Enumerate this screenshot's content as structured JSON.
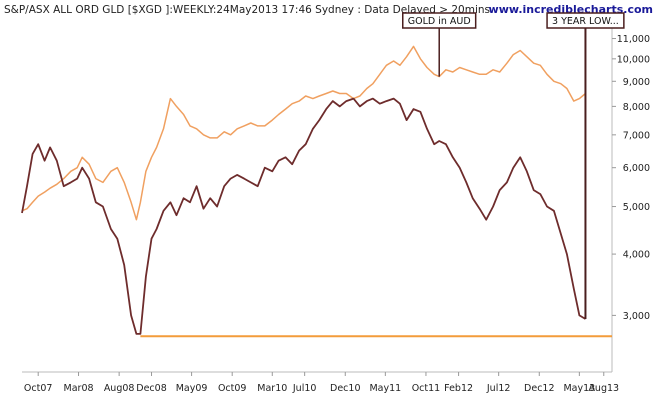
{
  "header": {
    "left_text": "S&P/ASX ALL ORD GLD [$XGD ]:WEEKLY:24May2013 17:46 Sydney : Data Delayed > 20mins",
    "brand": "www.incrediblecharts.com"
  },
  "colors": {
    "xgd_line": "#6e2c2c",
    "gold_aud_line": "#f0a060",
    "support_line": "#f39c3a",
    "annotation": "#4a1e1e"
  },
  "annotations": [
    {
      "label": "GOLD in AUD",
      "points_to_x": "2011-11-20"
    },
    {
      "label": "3 YEAR LOW...",
      "points_to_x": "2013-05-24"
    }
  ],
  "chart_data": {
    "type": "line",
    "title": "S&P/ASX ALL ORD GLD [$XGD ]:WEEKLY:24May2013 17:46 Sydney : Data Delayed > 20mins",
    "x_ticks": [
      "Oct07",
      "Mar08",
      "Aug08",
      "Dec08",
      "May09",
      "Oct09",
      "Mar10",
      "Jul10",
      "Dec10",
      "May11",
      "Oct11",
      "Feb12",
      "Jul12",
      "Dec12",
      "May13",
      "Aug13"
    ],
    "x_tick_dates": [
      "2007-10-01",
      "2008-03-01",
      "2008-08-01",
      "2008-12-01",
      "2009-05-01",
      "2009-10-01",
      "2010-03-01",
      "2010-07-01",
      "2010-12-01",
      "2011-05-01",
      "2011-10-01",
      "2012-02-01",
      "2012-07-01",
      "2012-12-01",
      "2013-05-01",
      "2013-08-01"
    ],
    "x_range": [
      "2007-08-01",
      "2013-09-01"
    ],
    "y_scale": "log",
    "y_ticks": [
      3000,
      4000,
      5000,
      6000,
      7000,
      8000,
      9000,
      10000,
      11000
    ],
    "y_tick_labels": [
      "3,000",
      "4,000",
      "5,000",
      "6,000",
      "7,000",
      "8,000",
      "9,000",
      "10,000",
      "11,000"
    ],
    "ylim": [
      2300,
      12000
    ],
    "grid": false,
    "legend": "none",
    "horizontal_line": {
      "y": 2720,
      "from": "2008-10-20",
      "to": "2013-09-01"
    },
    "series": [
      {
        "x": [
          "2007-08-01",
          "2007-08-20",
          "2007-09-10",
          "2007-10-01",
          "2007-10-25",
          "2007-11-15",
          "2007-12-10",
          "2008-01-05",
          "2008-02-01",
          "2008-02-25",
          "2008-03-15",
          "2008-04-10",
          "2008-05-05",
          "2008-06-01",
          "2008-07-01",
          "2008-07-25",
          "2008-08-20",
          "2008-09-15",
          "2008-10-05",
          "2008-10-20",
          "2008-11-10",
          "2008-12-01",
          "2008-12-20",
          "2009-01-15",
          "2009-02-10",
          "2009-03-05",
          "2009-04-01",
          "2009-04-25",
          "2009-05-20",
          "2009-06-15",
          "2009-07-10",
          "2009-08-05",
          "2009-09-01",
          "2009-09-25",
          "2009-10-20",
          "2009-11-15",
          "2009-12-10",
          "2010-01-05",
          "2010-02-01",
          "2010-03-01",
          "2010-03-25",
          "2010-04-20",
          "2010-05-15",
          "2010-06-10",
          "2010-07-05",
          "2010-08-01",
          "2010-08-25",
          "2010-09-20",
          "2010-10-15",
          "2010-11-10",
          "2010-12-05",
          "2011-01-01",
          "2011-01-25",
          "2011-02-20",
          "2011-03-15",
          "2011-04-10",
          "2011-05-05",
          "2011-06-01",
          "2011-06-25",
          "2011-07-20",
          "2011-08-15",
          "2011-09-10",
          "2011-10-05",
          "2011-11-01",
          "2011-11-20",
          "2011-12-15",
          "2012-01-10",
          "2012-02-05",
          "2012-03-01",
          "2012-03-25",
          "2012-04-20",
          "2012-05-15",
          "2012-06-10",
          "2012-07-05",
          "2012-08-01",
          "2012-08-25",
          "2012-09-20",
          "2012-10-15",
          "2012-11-10",
          "2012-12-05",
          "2012-12-30",
          "2013-01-25",
          "2013-02-20",
          "2013-03-15",
          "2013-04-10",
          "2013-05-01",
          "2013-05-24"
        ],
        "values": [
          4900,
          4950,
          5100,
          5250,
          5350,
          5450,
          5550,
          5700,
          5900,
          6000,
          6300,
          6100,
          5700,
          5600,
          5900,
          6000,
          5600,
          5100,
          4700,
          5100,
          5900,
          6300,
          6600,
          7200,
          8300,
          8000,
          7700,
          7300,
          7200,
          7000,
          6900,
          6900,
          7100,
          7000,
          7200,
          7300,
          7400,
          7300,
          7300,
          7500,
          7700,
          7900,
          8100,
          8200,
          8400,
          8300,
          8400,
          8500,
          8600,
          8500,
          8500,
          8300,
          8400,
          8700,
          8900,
          9300,
          9700,
          9900,
          9700,
          10100,
          10600,
          10000,
          9600,
          9300,
          9200,
          9500,
          9400,
          9600,
          9500,
          9400,
          9300,
          9300,
          9500,
          9400,
          9800,
          10200,
          10400,
          10100,
          9800,
          9700,
          9300,
          9000,
          8900,
          8700,
          8200,
          8300,
          8500
        ]
      },
      {
        "x": [
          "2007-08-01",
          "2007-08-20",
          "2007-09-10",
          "2007-10-01",
          "2007-10-25",
          "2007-11-15",
          "2007-12-10",
          "2008-01-05",
          "2008-02-01",
          "2008-02-25",
          "2008-03-15",
          "2008-04-10",
          "2008-05-05",
          "2008-06-01",
          "2008-07-01",
          "2008-07-25",
          "2008-08-20",
          "2008-09-15",
          "2008-10-05",
          "2008-10-20",
          "2008-11-10",
          "2008-12-01",
          "2008-12-20",
          "2009-01-15",
          "2009-02-10",
          "2009-03-05",
          "2009-04-01",
          "2009-04-25",
          "2009-05-20",
          "2009-06-15",
          "2009-07-10",
          "2009-08-05",
          "2009-09-01",
          "2009-09-25",
          "2009-10-20",
          "2009-11-15",
          "2009-12-10",
          "2010-01-05",
          "2010-02-01",
          "2010-03-01",
          "2010-03-25",
          "2010-04-20",
          "2010-05-15",
          "2010-06-10",
          "2010-07-05",
          "2010-08-01",
          "2010-08-25",
          "2010-09-20",
          "2010-10-15",
          "2010-11-10",
          "2010-12-05",
          "2011-01-01",
          "2011-01-25",
          "2011-02-20",
          "2011-03-15",
          "2011-04-10",
          "2011-05-05",
          "2011-06-01",
          "2011-06-25",
          "2011-07-20",
          "2011-08-15",
          "2011-09-10",
          "2011-10-05",
          "2011-11-01",
          "2011-11-20",
          "2011-12-15",
          "2012-01-10",
          "2012-02-05",
          "2012-03-01",
          "2012-03-25",
          "2012-04-20",
          "2012-05-15",
          "2012-06-10",
          "2012-07-05",
          "2012-08-01",
          "2012-08-25",
          "2012-09-20",
          "2012-10-15",
          "2012-11-10",
          "2012-12-05",
          "2012-12-30",
          "2013-01-25",
          "2013-02-20",
          "2013-03-15",
          "2013-04-10",
          "2013-05-01",
          "2013-05-24"
        ],
        "values": [
          4850,
          5500,
          6400,
          6700,
          6200,
          6600,
          6200,
          5500,
          5600,
          5700,
          6000,
          5700,
          5100,
          5000,
          4500,
          4300,
          3800,
          3000,
          2750,
          2750,
          3600,
          4300,
          4500,
          4900,
          5100,
          4800,
          5200,
          5100,
          5500,
          4950,
          5200,
          5000,
          5500,
          5700,
          5800,
          5700,
          5600,
          5500,
          6000,
          5900,
          6200,
          6300,
          6100,
          6500,
          6700,
          7200,
          7500,
          7900,
          8200,
          8000,
          8200,
          8300,
          8000,
          8200,
          8300,
          8100,
          8200,
          8300,
          8100,
          7500,
          7900,
          7800,
          7200,
          6700,
          6800,
          6700,
          6300,
          6000,
          5600,
          5200,
          4950,
          4700,
          5000,
          5400,
          5600,
          6000,
          6300,
          5900,
          5400,
          5300,
          5000,
          4900,
          4400,
          4000,
          3400,
          3000,
          2950
        ]
      }
    ]
  }
}
